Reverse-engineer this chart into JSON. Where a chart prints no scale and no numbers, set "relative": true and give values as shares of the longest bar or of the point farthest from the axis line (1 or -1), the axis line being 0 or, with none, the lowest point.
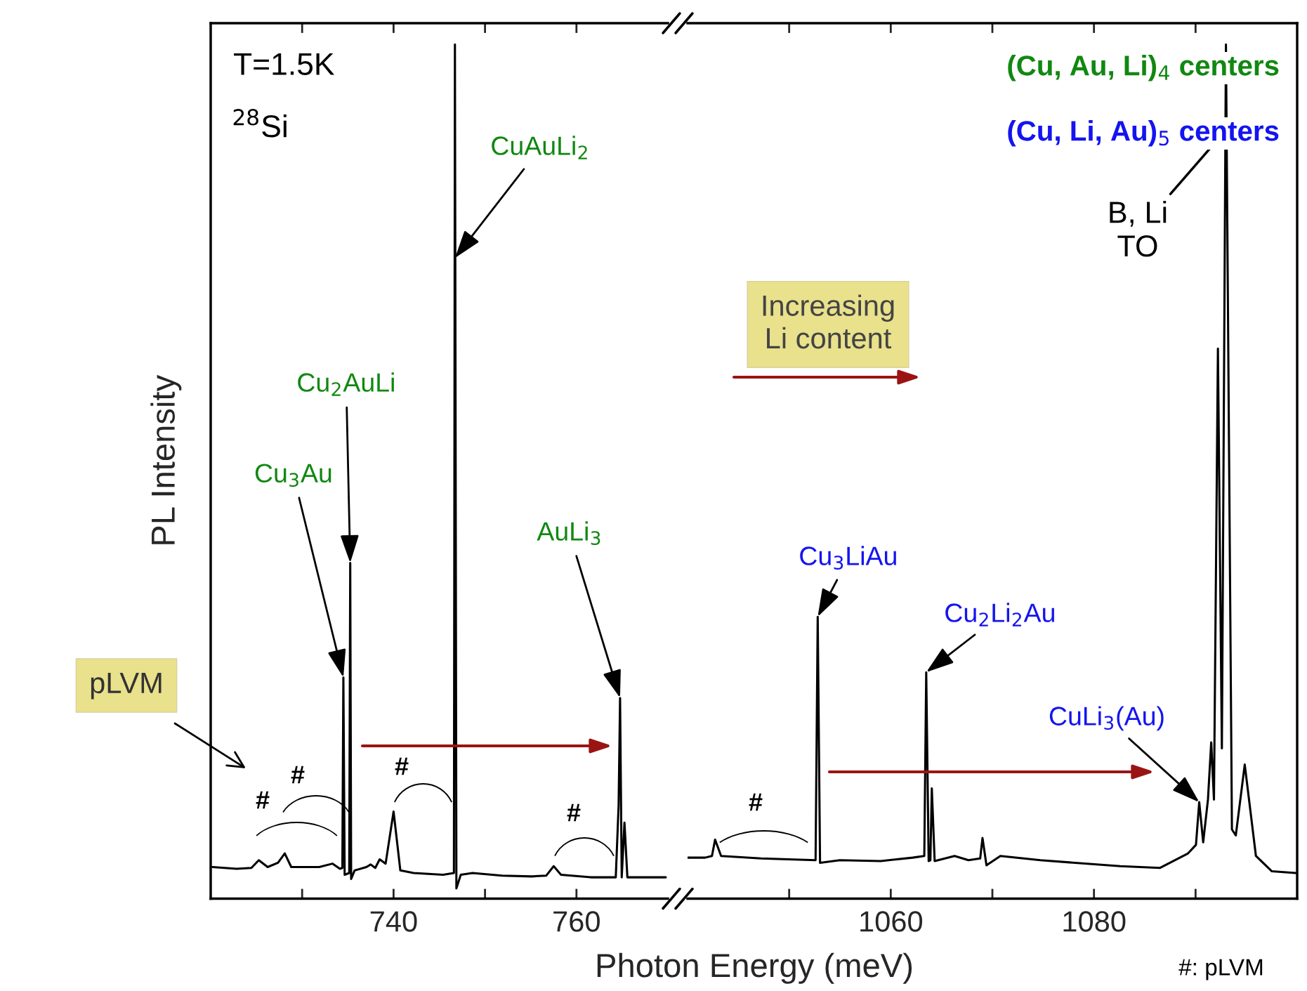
{
  "chart_data": [
    {
      "type": "line",
      "relative": true,
      "xlabel": "Photon Energy (meV)",
      "ylabel": "PL Intensity",
      "xlim": [
        720,
        770
      ],
      "xticks": [
        {
          "value": 730,
          "label": null
        },
        740,
        {
          "value": 750,
          "label": null
        },
        760
      ],
      "series": [
        {
          "color": "#000000",
          "x": [
            720.2,
            722.84,
            724.45,
            725.26,
            726.23,
            727.36,
            728.1,
            728.81,
            731.87,
            733.33,
            734.13,
            734.4,
            734.51,
            734.65,
            735.15,
            735.26,
            735.36,
            735.74,
            737.03,
            737.5,
            738.0,
            738.48,
            739.13,
            740.0,
            740.74,
            742.19,
            745.42,
            746.6,
            746.71,
            746.87,
            747.35,
            748.64,
            751.87,
            755.09,
            756.7,
            757.51,
            758.31,
            761.54,
            764.3,
            764.61,
            764.77,
            764.95,
            765.25,
            765.57,
            767.35,
            769.77
          ],
          "values": [
            0.037,
            0.035,
            0.036,
            0.045,
            0.037,
            0.042,
            0.053,
            0.037,
            0.037,
            0.041,
            0.035,
            0.036,
            0.259,
            0.028,
            0.03,
            0.393,
            0.023,
            0.033,
            0.037,
            0.04,
            0.036,
            0.046,
            0.041,
            0.102,
            0.033,
            0.03,
            0.028,
            0.03,
            1.0,
            0.012,
            0.028,
            0.03,
            0.027,
            0.026,
            0.027,
            0.038,
            0.028,
            0.025,
            0.025,
            0.109,
            0.235,
            0.025,
            0.089,
            0.025,
            0.025,
            0.025
          ]
        }
      ],
      "annotations": [
        "T=1.5K",
        "$^{28}$Si",
        "pLVM",
        {
          "text": "Cu$_{3}$Au",
          "x": 734.51,
          "y": 0.259
        },
        {
          "text": "Cu$_{2}$AuLi",
          "x": 735.26,
          "y": 0.393
        },
        {
          "text": "CuAuLi$_{2}$",
          "x": 746.71,
          "y": 0.75
        },
        {
          "text": "AuLi$_{3}$",
          "x": 764.77,
          "y": 0.235
        },
        "#",
        "#",
        "#",
        "#"
      ]
    },
    {
      "type": "line",
      "relative": true,
      "xlim": [
        1040,
        1100
      ],
      "xticks": [
        {
          "value": 1050,
          "label": null
        },
        1060,
        {
          "value": 1070,
          "label": null
        },
        1080,
        {
          "value": 1090,
          "label": null
        }
      ],
      "series": [
        {
          "color": "#000000",
          "x": [
            1040.0,
            1041.73,
            1042.4,
            1042.71,
            1043.3,
            1047.23,
            1052.6,
            1052.81,
            1053.04,
            1054.99,
            1059.02,
            1062.16,
            1063.3,
            1063.49,
            1063.73,
            1063.9,
            1064.04,
            1064.32,
            1066.28,
            1067.65,
            1068.8,
            1069.03,
            1069.42,
            1070.79,
            1074.73,
            1082.58,
            1086.51,
            1089.26,
            1090.04,
            1090.36,
            1090.75,
            1091.22,
            1091.54,
            1091.81,
            1092.2,
            1092.59,
            1092.99,
            1093.58,
            1093.96,
            1094.84,
            1095.94,
            1097.51,
            1099.86
          ],
          "values": [
            0.048,
            0.048,
            0.05,
            0.069,
            0.05,
            0.047,
            0.045,
            0.33,
            0.042,
            0.045,
            0.044,
            0.048,
            0.05,
            0.265,
            0.044,
            0.045,
            0.129,
            0.044,
            0.05,
            0.045,
            0.047,
            0.071,
            0.039,
            0.05,
            0.045,
            0.038,
            0.036,
            0.053,
            0.063,
            0.113,
            0.066,
            0.116,
            0.183,
            0.116,
            0.644,
            0.176,
            1.0,
            0.081,
            0.074,
            0.157,
            0.05,
            0.032,
            0.03
          ]
        }
      ],
      "annotations": [
        "(Cu, Au, Li)$_{4}$ centers",
        "(Cu, Li, Au)$_{5}$ centers",
        {
          "text": "Cu$_{3}$LiAu",
          "x": 1052.81,
          "y": 0.33
        },
        {
          "text": "Cu$_{2}$Li$_{2}$Au",
          "x": 1063.49,
          "y": 0.265
        },
        {
          "text": "CuLi$_{3}$(Au)",
          "x": 1090.36,
          "y": 0.113
        },
        {
          "text": "B, Li\nTO",
          "x": 1092.99,
          "y": 0.9
        },
        "Increasing\nLi content",
        "#",
        "#: pLVM"
      ]
    }
  ]
}
